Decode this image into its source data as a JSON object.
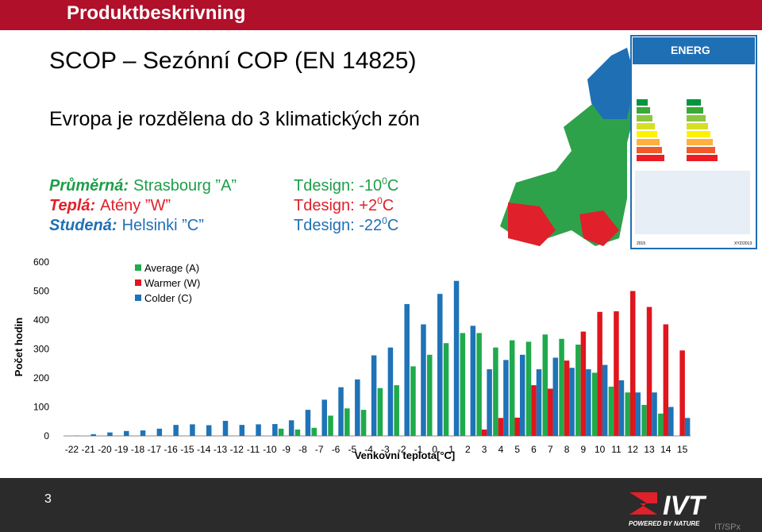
{
  "header": {
    "title": "Produktbeskrivning"
  },
  "slide": {
    "title": "SCOP – Sezónní COP (EN 14825)",
    "subtitle": "Evropa je rozdělena do 3 klimatických zón",
    "zones": [
      {
        "label": "Průměrná:",
        "city": "Strasbourg ”A”",
        "tdesign": "Tdesign: -10",
        "sup": "0",
        "unit": "C",
        "color": "#1e9e4a"
      },
      {
        "label": "Teplá:",
        "city": "Atény ”W”",
        "tdesign": "Tdesign: +2",
        "sup": "0",
        "unit": "C",
        "color": "#e0202a"
      },
      {
        "label": "Studená:",
        "city": "Helsinki ”C”",
        "tdesign": "Tdesign: -22",
        "sup": "0",
        "unit": "C",
        "color": "#1f6fb5"
      }
    ]
  },
  "energy_label": {
    "brand": "ENERG",
    "year": "2015",
    "code": "XYZ/2013"
  },
  "chart_data": {
    "type": "bar",
    "ylabel": "Počet hodin",
    "xlabel": "Venkovní teplota[°C]",
    "categories": [
      "-22",
      "-21",
      "-20",
      "-19",
      "-18",
      "-17",
      "-16",
      "-15",
      "-14",
      "-13",
      "-12",
      "-11",
      "-10",
      "-9",
      "-8",
      "-7",
      "-6",
      "-5",
      "-4",
      "-3",
      "-2",
      "-1",
      "0",
      "1",
      "2",
      "3",
      "4",
      "5",
      "6",
      "7",
      "8",
      "9",
      "10",
      "11",
      "12",
      "13",
      "14",
      "15"
    ],
    "series": [
      {
        "name": "Average (A)",
        "color": "#1faa4b",
        "values": [
          null,
          null,
          null,
          null,
          null,
          null,
          null,
          null,
          null,
          null,
          null,
          null,
          null,
          25,
          22,
          28,
          70,
          95,
          90,
          165,
          175,
          240,
          280,
          320,
          355,
          355,
          305,
          330,
          325,
          350,
          335,
          315,
          218,
          170,
          150,
          107,
          77,
          null
        ]
      },
      {
        "name": "Warmer (W)",
        "color": "#e0151d",
        "values": [
          null,
          null,
          null,
          null,
          null,
          null,
          null,
          null,
          null,
          null,
          null,
          null,
          null,
          null,
          null,
          null,
          null,
          null,
          null,
          null,
          null,
          null,
          null,
          null,
          null,
          22,
          62,
          63,
          175,
          163,
          260,
          360,
          428,
          430,
          500,
          445,
          385,
          295
        ]
      },
      {
        "name": "Colder (C)",
        "color": "#1f73b7",
        "values": [
          1,
          6,
          12,
          17,
          19,
          25,
          38,
          40,
          37,
          52,
          38,
          40,
          41,
          54,
          90,
          125,
          168,
          195,
          278,
          305,
          455,
          385,
          490,
          535,
          380,
          230,
          262,
          280,
          230,
          270,
          235,
          230,
          245,
          192,
          150,
          150,
          100,
          62
        ]
      }
    ],
    "ylim": [
      0,
      600
    ],
    "yticks": [
      0,
      100,
      200,
      300,
      400,
      500,
      600
    ]
  },
  "footer": {
    "page": "3",
    "logo": "IVT",
    "tagline": "POWERED BY NATURE",
    "code": "IT/SPx"
  }
}
